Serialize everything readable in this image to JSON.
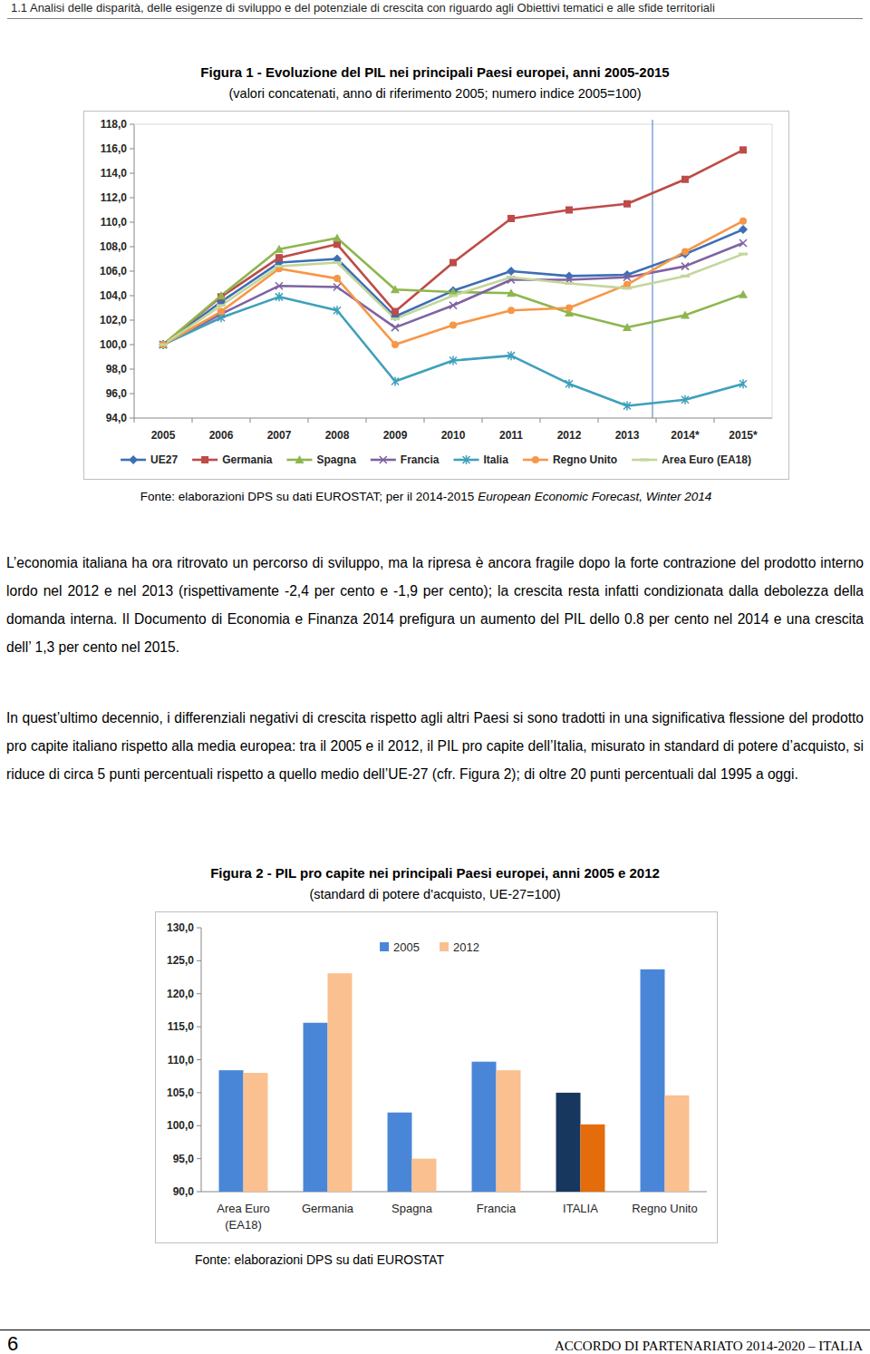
{
  "header": {
    "section": "1.1 Analisi delle disparità, delle esigenze di sviluppo e del potenziale di crescita con riguardo agli Obiettivi tematici e alle sfide territoriali"
  },
  "chart_data": [
    {
      "type": "line",
      "title": "Figura 1 - Evoluzione del PIL nei principali Paesi europei, anni 2005-2015",
      "subtitle": "(valori concatenati, anno di riferimento 2005; numero indice 2005=100)",
      "annotations": [
        "Fonte: elaborazioni DPS su dati EUROSTAT; per il 2014-2015",
        "European Economic Forecast, Winter 2014"
      ],
      "categories": [
        "2005",
        "2006",
        "2007",
        "2008",
        "2009",
        "2010",
        "2011",
        "2012",
        "2013",
        "2014*",
        "2015*"
      ],
      "ylim": [
        94,
        118
      ],
      "yticks": [
        {
          "value": 94,
          "label": "94,0"
        },
        {
          "value": 96,
          "label": "96,0"
        },
        {
          "value": 98,
          "label": "98,0"
        },
        {
          "value": 100,
          "label": "100,0"
        },
        {
          "value": 102,
          "label": "102,0"
        },
        {
          "value": 104,
          "label": "104,0"
        },
        {
          "value": 106,
          "label": "106,0"
        },
        {
          "value": 108,
          "label": "108,0"
        },
        {
          "value": 110,
          "label": "110,0"
        },
        {
          "value": 112,
          "label": "112,0"
        },
        {
          "value": 114,
          "label": "114,0"
        },
        {
          "value": 116,
          "label": "116,0"
        },
        {
          "value": 118,
          "label": "118,0"
        }
      ],
      "grid": false,
      "legend": "bottom",
      "series": [
        {
          "name": "UE27",
          "color": "#3d6fb6",
          "marker": "diamond",
          "values": [
            100,
            103.5,
            106.7,
            107.0,
            102.3,
            104.4,
            106.0,
            105.6,
            105.7,
            107.4,
            109.4
          ]
        },
        {
          "name": "Germania",
          "color": "#be4b48",
          "marker": "square",
          "values": [
            100,
            103.9,
            107.1,
            108.2,
            102.7,
            106.7,
            110.3,
            111.0,
            111.5,
            113.5,
            115.9
          ]
        },
        {
          "name": "Spagna",
          "color": "#8db64e",
          "marker": "triangle",
          "values": [
            100,
            104.0,
            107.8,
            108.7,
            104.5,
            104.3,
            104.2,
            102.6,
            101.4,
            102.4,
            104.1
          ]
        },
        {
          "name": "Francia",
          "color": "#7f63a2",
          "marker": "x",
          "values": [
            100,
            102.5,
            104.8,
            104.7,
            101.4,
            103.2,
            105.3,
            105.3,
            105.5,
            106.4,
            108.3
          ]
        },
        {
          "name": "Italia",
          "color": "#3ea0bb",
          "marker": "star",
          "values": [
            100,
            102.2,
            103.9,
            102.8,
            97.0,
            98.7,
            99.1,
            96.8,
            95.0,
            95.5,
            96.8
          ]
        },
        {
          "name": "Regno Unito",
          "color": "#f79646",
          "marker": "circle",
          "values": [
            100,
            102.7,
            106.2,
            105.4,
            100.0,
            101.6,
            102.8,
            103.0,
            104.9,
            107.6,
            110.1
          ]
        },
        {
          "name": "Area Euro (EA18)",
          "color": "#c3d69b",
          "marker": "dash",
          "values": [
            100,
            103.2,
            106.4,
            106.7,
            102.1,
            104.0,
            105.5,
            105.0,
            104.6,
            105.6,
            107.4
          ]
        }
      ]
    },
    {
      "type": "bar",
      "title": "Figura 2 - PIL pro capite nei principali Paesi europei, anni 2005 e 2012",
      "subtitle": "(standard di potere d'acquisto, UE-27=100)",
      "annotations": [
        "Fonte: elaborazioni DPS su dati EUROSTAT"
      ],
      "categories": [
        "Area Euro (EA18)",
        "Germania",
        "Spagna",
        "Francia",
        "ITALIA",
        "Regno Unito"
      ],
      "ylim": [
        90,
        130
      ],
      "yticks": [
        {
          "value": 90,
          "label": "90,0"
        },
        {
          "value": 95,
          "label": "95,0"
        },
        {
          "value": 100,
          "label": "100,0"
        },
        {
          "value": 105,
          "label": "105,0"
        },
        {
          "value": 110,
          "label": "110,0"
        },
        {
          "value": 115,
          "label": "115,0"
        },
        {
          "value": 120,
          "label": "120,0"
        },
        {
          "value": 125,
          "label": "125,0"
        },
        {
          "value": 130,
          "label": "130,0"
        }
      ],
      "grid": false,
      "legend": "top",
      "series": [
        {
          "name": "2005",
          "color": "#4a86d8",
          "colors": [
            "#4a86d8",
            "#4a86d8",
            "#4a86d8",
            "#4a86d8",
            "#17375e",
            "#4a86d8"
          ],
          "values": [
            108.4,
            115.6,
            102.0,
            109.7,
            105.0,
            123.7
          ]
        },
        {
          "name": "2012",
          "color": "#fac08f",
          "colors": [
            "#fac08f",
            "#fac08f",
            "#fac08f",
            "#fac08f",
            "#e46c0a",
            "#fac08f"
          ],
          "values": [
            108.0,
            123.1,
            95.0,
            108.4,
            100.2,
            104.6
          ]
        }
      ]
    }
  ],
  "paragraphs": [
    "L’economia italiana ha ora ritrovato un percorso di sviluppo, ma la ripresa è ancora fragile dopo la forte contrazione del prodotto interno lordo nel 2012 e nel 2013 (rispettivamente -2,4 per cento e -1,9 per cento); la crescita resta infatti condizionata dalla debolezza della domanda interna. Il Documento di Economia e Finanza 2014 prefigura un aumento del PIL dello 0.8 per cento nel 2014 e una crescita dell’ 1,3 per cento nel 2015.",
    "In quest’ultimo decennio, i differenziali negativi di crescita rispetto agli altri Paesi si sono tradotti in una significativa flessione del prodotto pro capite italiano rispetto alla media europea: tra il 2005 e il 2012, il PIL pro capite dell’Italia, misurato in standard di potere d’acquisto, si riduce di circa 5 punti percentuali rispetto a quello medio dell’UE-27 (cfr. Figura 2); di oltre 20 punti percentuali dal 1995 a oggi."
  ],
  "footer": {
    "page_number": 6,
    "text": "ACCORDO DI PARTENARIATO 2014-2020 – ITALIA"
  }
}
